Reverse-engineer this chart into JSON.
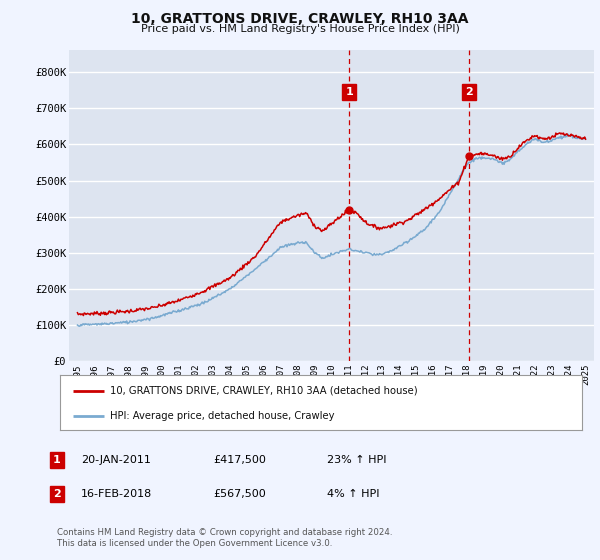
{
  "title": "10, GRATTONS DRIVE, CRAWLEY, RH10 3AA",
  "subtitle": "Price paid vs. HM Land Registry's House Price Index (HPI)",
  "ylabel_ticks": [
    "£0",
    "£100K",
    "£200K",
    "£300K",
    "£400K",
    "£500K",
    "£600K",
    "£700K",
    "£800K"
  ],
  "ylabel_values": [
    0,
    100000,
    200000,
    300000,
    400000,
    500000,
    600000,
    700000,
    800000
  ],
  "ylim": [
    0,
    860000
  ],
  "xlim_start": 1994.5,
  "xlim_end": 2025.5,
  "background_color": "#f0f4ff",
  "plot_bg_color": "#dde4f0",
  "grid_color": "#ffffff",
  "red_line_color": "#cc0000",
  "blue_line_color": "#7aaad0",
  "vline_color": "#cc0000",
  "annotation_box_color": "#cc0000",
  "transaction1_x": 2011.05,
  "transaction1_y": 417500,
  "transaction1_label": "1",
  "transaction1_date": "20-JAN-2011",
  "transaction1_price": "£417,500",
  "transaction1_hpi": "23% ↑ HPI",
  "transaction2_x": 2018.12,
  "transaction2_y": 567500,
  "transaction2_label": "2",
  "transaction2_date": "16-FEB-2018",
  "transaction2_price": "£567,500",
  "transaction2_hpi": "4% ↑ HPI",
  "legend_label1": "10, GRATTONS DRIVE, CRAWLEY, RH10 3AA (detached house)",
  "legend_label2": "HPI: Average price, detached house, Crawley",
  "footer": "Contains HM Land Registry data © Crown copyright and database right 2024.\nThis data is licensed under the Open Government Licence v3.0.",
  "xticks": [
    1995,
    1996,
    1997,
    1998,
    1999,
    2000,
    2001,
    2002,
    2003,
    2004,
    2005,
    2006,
    2007,
    2008,
    2009,
    2010,
    2011,
    2012,
    2013,
    2014,
    2015,
    2016,
    2017,
    2018,
    2019,
    2020,
    2021,
    2022,
    2023,
    2024,
    2025
  ]
}
